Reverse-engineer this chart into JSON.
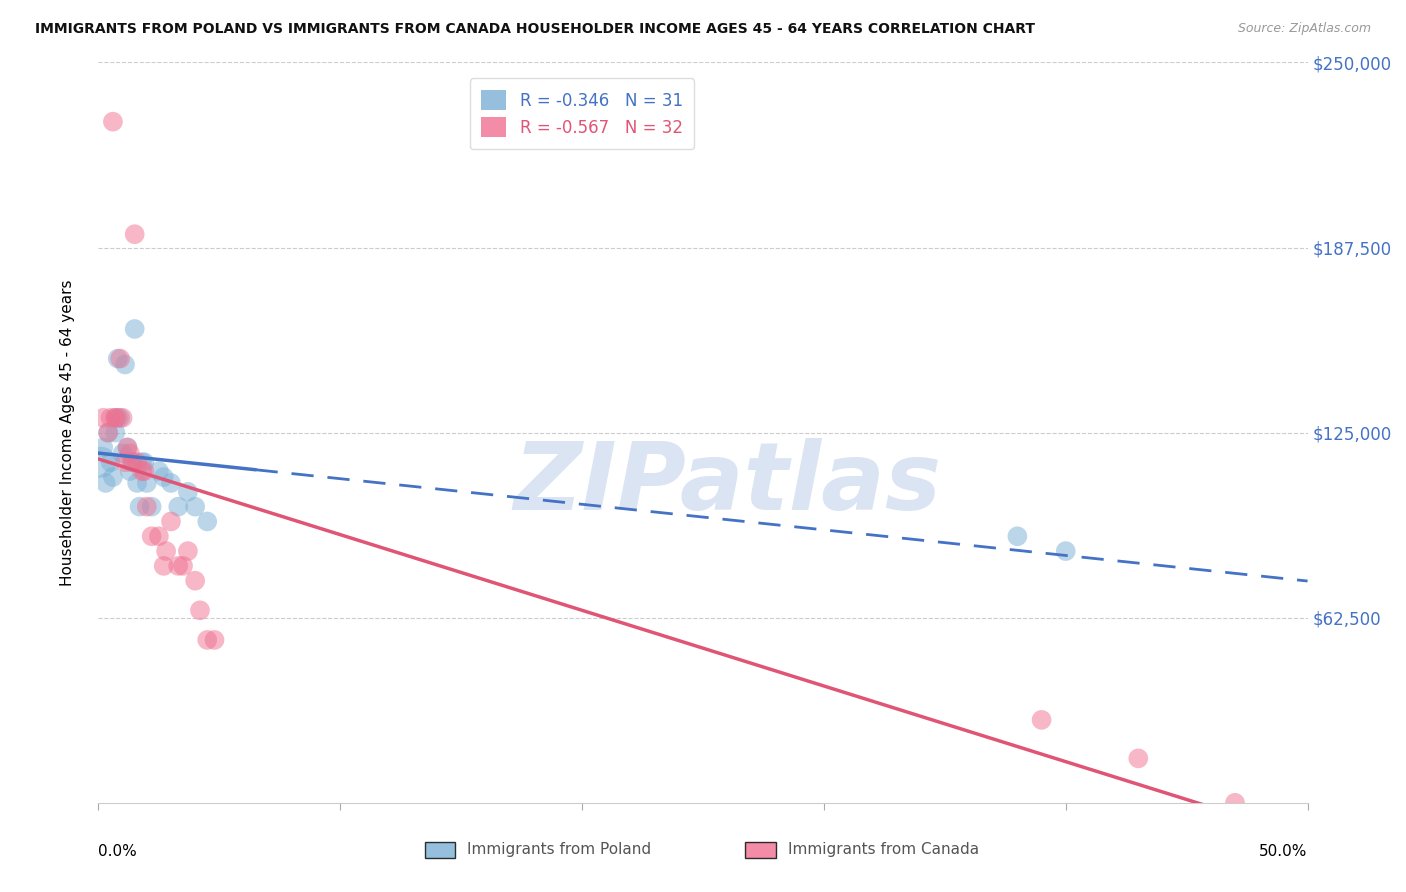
{
  "title": "IMMIGRANTS FROM POLAND VS IMMIGRANTS FROM CANADA HOUSEHOLDER INCOME AGES 45 - 64 YEARS CORRELATION CHART",
  "source": "Source: ZipAtlas.com",
  "ylabel": "Householder Income Ages 45 - 64 years",
  "ytick_labels": [
    "$250,000",
    "$187,500",
    "$125,000",
    "$62,500"
  ],
  "ytick_values": [
    250000,
    187500,
    125000,
    62500
  ],
  "xlim": [
    0.0,
    0.5
  ],
  "ylim": [
    0,
    250000
  ],
  "R_poland": -0.346,
  "N_poland": 31,
  "R_canada": -0.567,
  "N_canada": 32,
  "color_poland": "#7BAFD4",
  "color_canada": "#F07090",
  "color_line_poland": "#4472C4",
  "color_line_canada": "#E05575",
  "color_yticks": "#4472C4",
  "poland_x": [
    0.001,
    0.002,
    0.003,
    0.004,
    0.005,
    0.006,
    0.007,
    0.007,
    0.008,
    0.009,
    0.01,
    0.011,
    0.012,
    0.013,
    0.014,
    0.015,
    0.016,
    0.017,
    0.018,
    0.019,
    0.02,
    0.022,
    0.025,
    0.027,
    0.03,
    0.033,
    0.037,
    0.04,
    0.045,
    0.38,
    0.4
  ],
  "poland_y": [
    115000,
    120000,
    108000,
    125000,
    115000,
    110000,
    125000,
    130000,
    150000,
    130000,
    118000,
    148000,
    120000,
    112000,
    115000,
    160000,
    108000,
    100000,
    115000,
    115000,
    108000,
    100000,
    112000,
    110000,
    108000,
    100000,
    105000,
    100000,
    95000,
    90000,
    85000
  ],
  "poland_sizes": [
    500,
    200,
    200,
    200,
    200,
    200,
    200,
    200,
    200,
    200,
    200,
    200,
    200,
    200,
    200,
    200,
    200,
    200,
    200,
    200,
    200,
    200,
    200,
    200,
    200,
    200,
    200,
    200,
    200,
    200,
    200
  ],
  "canada_x": [
    0.002,
    0.004,
    0.005,
    0.006,
    0.007,
    0.008,
    0.009,
    0.01,
    0.011,
    0.012,
    0.013,
    0.014,
    0.015,
    0.016,
    0.018,
    0.019,
    0.02,
    0.022,
    0.025,
    0.027,
    0.028,
    0.03,
    0.033,
    0.035,
    0.037,
    0.04,
    0.042,
    0.045,
    0.048,
    0.39,
    0.43,
    0.47
  ],
  "canada_y": [
    130000,
    125000,
    130000,
    230000,
    130000,
    130000,
    150000,
    130000,
    115000,
    120000,
    118000,
    115000,
    192000,
    115000,
    112000,
    112000,
    100000,
    90000,
    90000,
    80000,
    85000,
    95000,
    80000,
    80000,
    85000,
    75000,
    65000,
    55000,
    55000,
    28000,
    15000,
    0
  ],
  "canada_sizes": [
    200,
    200,
    200,
    200,
    200,
    200,
    200,
    200,
    200,
    200,
    200,
    200,
    200,
    200,
    200,
    200,
    200,
    200,
    200,
    200,
    200,
    200,
    200,
    200,
    200,
    200,
    200,
    200,
    200,
    200,
    200,
    200
  ]
}
